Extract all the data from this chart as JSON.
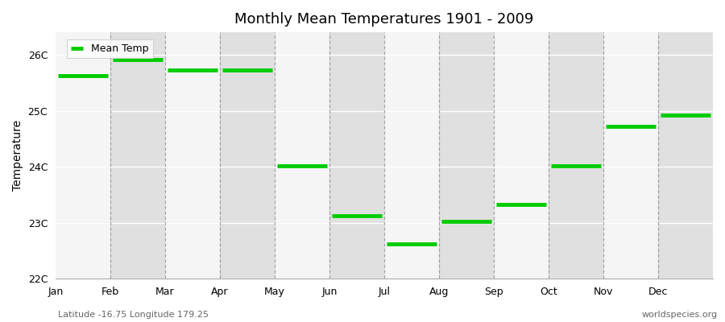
{
  "title": "Monthly Mean Temperatures 1901 - 2009",
  "ylabel": "Temperature",
  "subtitle_left": "Latitude -16.75 Longitude 179.25",
  "subtitle_right": "worldspecies.org",
  "fig_bg_color": "#ffffff",
  "plot_bg_color": "#ebebeb",
  "band_color_light": "#f5f5f5",
  "band_color_dark": "#e0e0e0",
  "line_color": "#00cc00",
  "line_width": 3.5,
  "months": [
    "Jan",
    "Feb",
    "Mar",
    "Apr",
    "May",
    "Jun",
    "Jul",
    "Aug",
    "Sep",
    "Oct",
    "Nov",
    "Dec"
  ],
  "temps": [
    25.62,
    25.92,
    25.72,
    25.72,
    24.02,
    23.12,
    22.62,
    23.02,
    23.32,
    24.02,
    24.72,
    24.92
  ],
  "ylim_min": 22.0,
  "ylim_max": 26.4,
  "yticks": [
    22,
    23,
    24,
    25,
    26
  ],
  "ytick_labels": [
    "22C",
    "23C",
    "24C",
    "25C",
    "26C"
  ],
  "grid_color": "#888888",
  "legend_label": "Mean Temp"
}
